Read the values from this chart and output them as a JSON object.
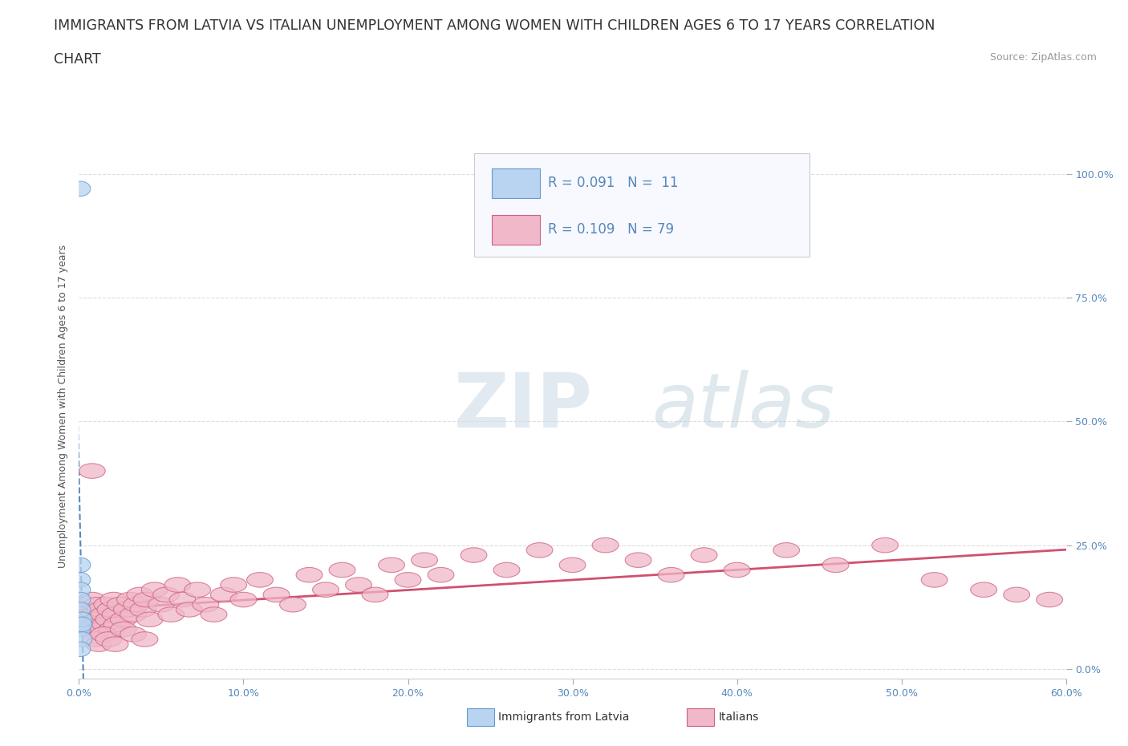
{
  "title_line1": "IMMIGRANTS FROM LATVIA VS ITALIAN UNEMPLOYMENT AMONG WOMEN WITH CHILDREN AGES 6 TO 17 YEARS CORRELATION",
  "title_line2": "CHART",
  "source_text": "Source: ZipAtlas.com",
  "ylabel": "Unemployment Among Women with Children Ages 6 to 17 years",
  "xlabel_ticks": [
    "0.0%",
    "10.0%",
    "20.0%",
    "30.0%",
    "40.0%",
    "50.0%",
    "60.0%"
  ],
  "ylabel_ticks_right": [
    "100.0%",
    "75.0%",
    "50.0%",
    "25.0%",
    "0.0%"
  ],
  "xlim": [
    0.0,
    0.6
  ],
  "ylim": [
    -0.02,
    1.08
  ],
  "watermark_zip": "ZIP",
  "watermark_atlas": "atlas",
  "legend_text_1": "R = 0.091   N =  11",
  "legend_text_2": "R = 0.109   N = 79",
  "color_latvia_fill": "#b8d4f0",
  "color_latvia_edge": "#6699cc",
  "color_latvia_trend": "#5588bb",
  "color_italians_fill": "#f0b8c8",
  "color_italians_edge": "#d06080",
  "color_italians_trend": "#d05070",
  "background_color": "#ffffff",
  "grid_color": "#dddddd",
  "title_color": "#333333",
  "tick_color": "#5588bb",
  "title_fontsize": 12.5,
  "tick_fontsize": 9,
  "legend_fontsize": 12,
  "source_fontsize": 9,
  "latvia_x": [
    0.001,
    0.001,
    0.001,
    0.001,
    0.001,
    0.001,
    0.001,
    0.002,
    0.002,
    0.002,
    0.001
  ],
  "latvia_y": [
    0.97,
    0.21,
    0.18,
    0.16,
    0.14,
    0.12,
    0.08,
    0.1,
    0.09,
    0.06,
    0.04
  ],
  "italians_x": [
    0.005,
    0.006,
    0.007,
    0.008,
    0.009,
    0.01,
    0.011,
    0.012,
    0.013,
    0.014,
    0.015,
    0.016,
    0.017,
    0.018,
    0.019,
    0.02,
    0.021,
    0.022,
    0.023,
    0.025,
    0.027,
    0.029,
    0.031,
    0.033,
    0.035,
    0.037,
    0.039,
    0.041,
    0.043,
    0.046,
    0.05,
    0.053,
    0.056,
    0.06,
    0.063,
    0.067,
    0.072,
    0.077,
    0.082,
    0.088,
    0.094,
    0.1,
    0.11,
    0.12,
    0.13,
    0.14,
    0.15,
    0.16,
    0.17,
    0.18,
    0.19,
    0.2,
    0.21,
    0.22,
    0.24,
    0.26,
    0.28,
    0.3,
    0.32,
    0.34,
    0.36,
    0.38,
    0.4,
    0.43,
    0.46,
    0.49,
    0.52,
    0.55,
    0.57,
    0.59,
    0.008,
    0.01,
    0.012,
    0.015,
    0.018,
    0.022,
    0.027,
    0.033,
    0.04
  ],
  "italians_y": [
    0.1,
    0.12,
    0.08,
    0.14,
    0.11,
    0.09,
    0.13,
    0.1,
    0.12,
    0.08,
    0.11,
    0.09,
    0.13,
    0.1,
    0.12,
    0.08,
    0.14,
    0.11,
    0.09,
    0.13,
    0.1,
    0.12,
    0.14,
    0.11,
    0.13,
    0.15,
    0.12,
    0.14,
    0.1,
    0.16,
    0.13,
    0.15,
    0.11,
    0.17,
    0.14,
    0.12,
    0.16,
    0.13,
    0.11,
    0.15,
    0.17,
    0.14,
    0.18,
    0.15,
    0.13,
    0.19,
    0.16,
    0.2,
    0.17,
    0.15,
    0.21,
    0.18,
    0.22,
    0.19,
    0.23,
    0.2,
    0.24,
    0.21,
    0.25,
    0.22,
    0.19,
    0.23,
    0.2,
    0.24,
    0.21,
    0.25,
    0.18,
    0.16,
    0.15,
    0.14,
    0.4,
    0.06,
    0.05,
    0.07,
    0.06,
    0.05,
    0.08,
    0.07,
    0.06
  ]
}
